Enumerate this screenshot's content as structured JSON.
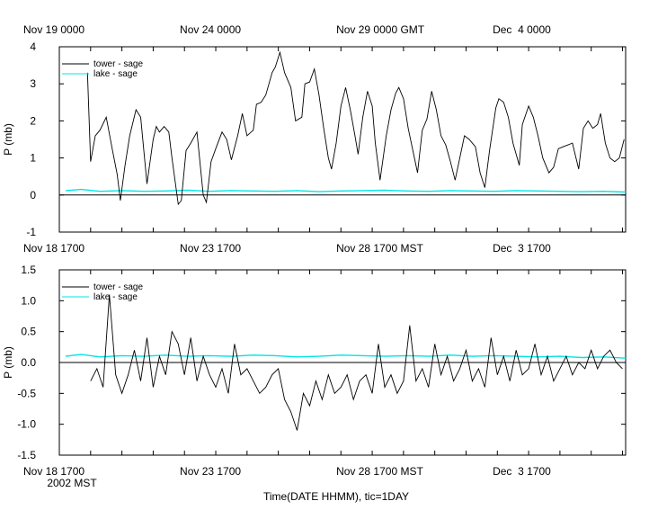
{
  "figure": {
    "xlabel": "Time(DATE HHMM), tic=1DAY",
    "year_label": "2002 MST"
  },
  "chart_data": [
    {
      "type": "line",
      "name": "top-panel",
      "ylabel": "P (mb)",
      "ylim": [
        -1,
        4
      ],
      "yticks": [
        -1,
        0,
        1,
        2,
        3,
        4
      ],
      "xlim": [
        0,
        18.1
      ],
      "top_tick_labels": [
        {
          "day": 0,
          "label": "Nov 19 0000"
        },
        {
          "day": 5,
          "label": "Nov 24 0000"
        },
        {
          "day": 10,
          "label": "Nov 29 0000 GMT"
        },
        {
          "day": 15,
          "label": "Dec  4 0000"
        }
      ],
      "bottom_tick_labels": [
        {
          "day": 0,
          "label": "Nov 18 1700"
        },
        {
          "day": 5,
          "label": "Nov 23 1700"
        },
        {
          "day": 10,
          "label": "Nov 28 1700 MST"
        },
        {
          "day": 15,
          "label": "Dec  3 1700"
        }
      ],
      "legend": [
        {
          "name": "tower - sage",
          "color": "#000000"
        },
        {
          "name": "lake - sage",
          "color": "#00e5e5"
        }
      ],
      "series": [
        {
          "name": "tower - sage",
          "color": "#000000",
          "x": [
            0.9,
            1.0,
            1.15,
            1.3,
            1.5,
            1.7,
            1.85,
            1.95,
            2.1,
            2.25,
            2.45,
            2.6,
            2.8,
            3.0,
            3.1,
            3.2,
            3.35,
            3.5,
            3.6,
            3.8,
            3.9,
            4.05,
            4.2,
            4.4,
            4.6,
            4.7,
            4.85,
            5.0,
            5.2,
            5.35,
            5.5,
            5.7,
            5.85,
            6.0,
            6.2,
            6.3,
            6.45,
            6.6,
            6.8,
            6.9,
            7.05,
            7.2,
            7.4,
            7.55,
            7.75,
            7.85,
            8.0,
            8.15,
            8.3,
            8.45,
            8.6,
            8.7,
            8.85,
            9.0,
            9.15,
            9.3,
            9.45,
            9.55,
            9.7,
            9.85,
            10.0,
            10.1,
            10.25,
            10.45,
            10.6,
            10.75,
            10.85,
            11.0,
            11.15,
            11.3,
            11.45,
            11.6,
            11.75,
            11.9,
            12.05,
            12.2,
            12.35,
            12.5,
            12.65,
            12.8,
            12.95,
            13.1,
            13.3,
            13.45,
            13.6,
            13.75,
            13.95,
            14.05,
            14.2,
            14.35,
            14.5,
            14.7,
            14.8,
            15.0,
            15.15,
            15.3,
            15.45,
            15.65,
            15.8,
            15.95,
            16.1,
            16.25,
            16.4,
            16.6,
            16.75,
            16.9,
            17.05,
            17.2,
            17.3,
            17.45,
            17.6,
            17.75,
            17.9,
            18.05
          ],
          "values": [
            3.3,
            0.9,
            1.6,
            1.75,
            2.1,
            1.2,
            0.55,
            -0.15,
            0.8,
            1.6,
            2.3,
            2.1,
            0.3,
            1.5,
            1.85,
            1.7,
            1.85,
            1.7,
            1.0,
            -0.25,
            -0.15,
            1.2,
            1.4,
            1.7,
            0.0,
            -0.2,
            0.9,
            1.25,
            1.7,
            1.5,
            0.95,
            1.6,
            2.2,
            1.6,
            1.75,
            2.45,
            2.5,
            2.7,
            3.3,
            3.45,
            3.85,
            3.3,
            2.9,
            2.0,
            2.1,
            3.0,
            3.05,
            3.4,
            2.7,
            1.8,
            1.0,
            0.7,
            1.4,
            2.4,
            2.9,
            2.3,
            1.6,
            1.1,
            2.1,
            2.8,
            2.4,
            1.4,
            0.4,
            1.6,
            2.3,
            2.75,
            2.9,
            2.6,
            1.8,
            1.2,
            0.6,
            1.75,
            2.05,
            2.8,
            2.3,
            1.6,
            1.35,
            0.9,
            0.4,
            1.0,
            1.6,
            1.5,
            1.3,
            0.6,
            0.2,
            1.2,
            2.35,
            2.6,
            2.5,
            2.1,
            1.4,
            0.8,
            1.9,
            2.4,
            2.1,
            1.6,
            1.0,
            0.6,
            0.75,
            1.25,
            1.3,
            1.35,
            1.4,
            0.7,
            1.8,
            2.0,
            1.8,
            1.9,
            2.2,
            1.4,
            1.0,
            0.9,
            1.0,
            1.5
          ]
        },
        {
          "name": "lake - sage",
          "color": "#00e5e5",
          "x": [
            0.2,
            0.7,
            1.3,
            2.0,
            2.7,
            3.4,
            4.1,
            4.8,
            5.5,
            6.2,
            6.9,
            7.6,
            8.3,
            9.0,
            9.7,
            10.4,
            11.1,
            11.8,
            12.5,
            13.2,
            13.9,
            14.6,
            15.3,
            16.0,
            16.7,
            17.4,
            18.1
          ],
          "values": [
            0.12,
            0.15,
            0.1,
            0.12,
            0.1,
            0.11,
            0.13,
            0.1,
            0.12,
            0.11,
            0.1,
            0.12,
            0.09,
            0.11,
            0.12,
            0.13,
            0.11,
            0.1,
            0.12,
            0.11,
            0.1,
            0.12,
            0.11,
            0.1,
            0.09,
            0.1,
            0.08
          ]
        }
      ]
    },
    {
      "type": "line",
      "name": "bottom-panel",
      "ylabel": "P (mb)",
      "ylim": [
        -1.5,
        1.5
      ],
      "yticks": [
        -1.5,
        -1.0,
        -0.5,
        0.0,
        0.5,
        1.0,
        1.5
      ],
      "ytick_labels": [
        "-1.5",
        "-1.0",
        "-0.5",
        "0.0",
        "0.5",
        "1.0",
        "1.5"
      ],
      "xlim": [
        0,
        18.1
      ],
      "bottom_tick_labels": [
        {
          "day": 0,
          "label": "Nov 18 1700"
        },
        {
          "day": 5,
          "label": "Nov 23 1700"
        },
        {
          "day": 10,
          "label": "Nov 28 1700 MST"
        },
        {
          "day": 15,
          "label": "Dec  3 1700"
        }
      ],
      "legend": [
        {
          "name": "tower - sage",
          "color": "#000000"
        },
        {
          "name": "lake - sage",
          "color": "#00e5e5"
        }
      ],
      "series": [
        {
          "name": "tower - sage",
          "color": "#000000",
          "x": [
            1.0,
            1.2,
            1.4,
            1.6,
            1.8,
            2.0,
            2.2,
            2.4,
            2.6,
            2.8,
            3.0,
            3.2,
            3.4,
            3.6,
            3.8,
            4.0,
            4.2,
            4.4,
            4.6,
            4.8,
            5.0,
            5.2,
            5.4,
            5.6,
            5.8,
            6.0,
            6.2,
            6.4,
            6.6,
            6.8,
            7.0,
            7.2,
            7.4,
            7.6,
            7.8,
            8.0,
            8.2,
            8.4,
            8.6,
            8.8,
            9.0,
            9.2,
            9.4,
            9.6,
            9.8,
            10.0,
            10.2,
            10.4,
            10.6,
            10.8,
            11.0,
            11.2,
            11.4,
            11.6,
            11.8,
            12.0,
            12.2,
            12.4,
            12.6,
            12.8,
            13.0,
            13.2,
            13.4,
            13.6,
            13.8,
            14.0,
            14.2,
            14.4,
            14.6,
            14.8,
            15.0,
            15.2,
            15.4,
            15.6,
            15.8,
            16.0,
            16.2,
            16.4,
            16.6,
            16.8,
            17.0,
            17.2,
            17.4,
            17.6,
            17.8,
            18.0
          ],
          "values": [
            -0.3,
            -0.1,
            -0.4,
            1.1,
            -0.2,
            -0.5,
            -0.2,
            0.2,
            -0.3,
            0.4,
            -0.4,
            0.1,
            -0.2,
            0.5,
            0.3,
            -0.2,
            0.4,
            -0.3,
            0.1,
            -0.2,
            -0.4,
            -0.1,
            -0.5,
            0.3,
            -0.2,
            -0.1,
            -0.3,
            -0.5,
            -0.4,
            -0.2,
            -0.1,
            -0.6,
            -0.8,
            -1.1,
            -0.5,
            -0.7,
            -0.3,
            -0.6,
            -0.2,
            -0.5,
            -0.4,
            -0.2,
            -0.6,
            -0.3,
            -0.2,
            -0.5,
            0.3,
            -0.4,
            -0.2,
            -0.5,
            -0.3,
            0.6,
            -0.3,
            -0.1,
            -0.4,
            0.3,
            -0.2,
            0.1,
            -0.3,
            -0.1,
            0.2,
            -0.3,
            -0.1,
            -0.4,
            0.4,
            -0.2,
            0.1,
            -0.3,
            0.2,
            -0.2,
            -0.1,
            0.3,
            -0.2,
            0.1,
            -0.3,
            -0.1,
            0.1,
            -0.2,
            0.0,
            -0.1,
            0.2,
            -0.1,
            0.1,
            0.2,
            0.0,
            -0.1
          ]
        },
        {
          "name": "lake - sage",
          "color": "#00e5e5",
          "x": [
            0.2,
            0.7,
            1.3,
            2.0,
            2.7,
            3.4,
            4.1,
            4.8,
            5.5,
            6.2,
            6.9,
            7.6,
            8.3,
            9.0,
            9.7,
            10.4,
            11.1,
            11.8,
            12.5,
            13.2,
            13.9,
            14.6,
            15.3,
            16.0,
            16.7,
            17.4,
            18.1
          ],
          "values": [
            0.1,
            0.13,
            0.09,
            0.11,
            0.1,
            0.12,
            0.1,
            0.11,
            0.1,
            0.12,
            0.11,
            0.09,
            0.1,
            0.12,
            0.11,
            0.1,
            0.11,
            0.1,
            0.12,
            0.1,
            0.11,
            0.1,
            0.09,
            0.1,
            0.08,
            0.09,
            0.07
          ]
        }
      ]
    }
  ]
}
